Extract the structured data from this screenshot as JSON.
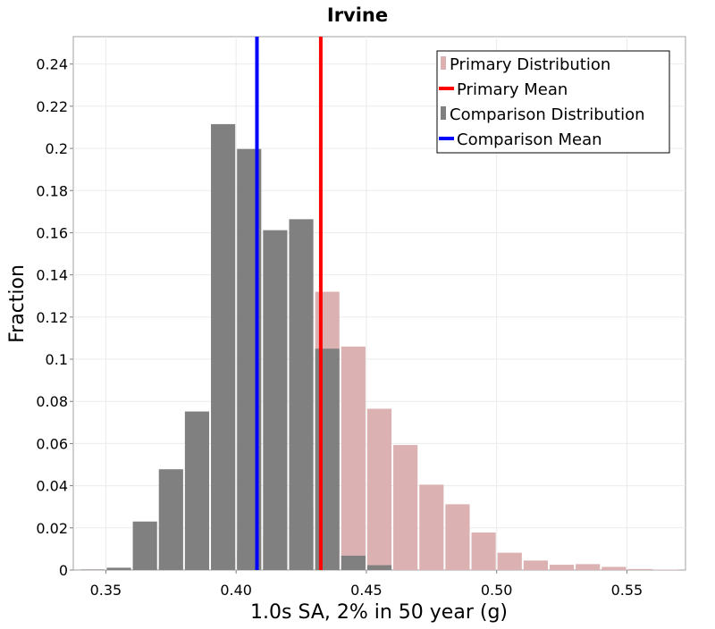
{
  "chart_data": {
    "type": "bar",
    "title": "Irvine",
    "xlabel": "1.0s SA, 2% in 50 year (g)",
    "ylabel": "Fraction",
    "xlim": [
      0.3375,
      0.5725
    ],
    "ylim": [
      0,
      0.253
    ],
    "xticks": [
      0.35,
      0.4,
      0.45,
      0.5,
      0.55
    ],
    "xtick_labels": [
      "0.35",
      "0.40",
      "0.45",
      "0.50",
      "0.55"
    ],
    "yticks": [
      0,
      0.02,
      0.04,
      0.06,
      0.08,
      0.1,
      0.12,
      0.14,
      0.16,
      0.18,
      0.2,
      0.22,
      0.24
    ],
    "ytick_labels": [
      "0",
      "0.02",
      "0.04",
      "0.06",
      "0.08",
      "0.1",
      "0.12",
      "0.14",
      "0.16",
      "0.18",
      "0.2",
      "0.22",
      "0.24"
    ],
    "bin_width": 0.01,
    "grid": true,
    "legend_position": "top-right",
    "series": [
      {
        "name": "Primary Distribution",
        "kind": "histogram",
        "color": "#dbb1b1",
        "bin_centers": [
          0.345,
          0.355,
          0.365,
          0.375,
          0.385,
          0.395,
          0.405,
          0.415,
          0.425,
          0.435,
          0.445,
          0.455,
          0.465,
          0.475,
          0.485,
          0.495,
          0.505,
          0.515,
          0.525,
          0.535,
          0.545,
          0.555,
          0.565
        ],
        "values": [
          0.0003,
          0.0006,
          0.001,
          0.002,
          0.004,
          0.006,
          0.01,
          0.016,
          0.03,
          0.132,
          0.106,
          0.0765,
          0.0593,
          0.0405,
          0.0312,
          0.0178,
          0.0082,
          0.0045,
          0.0025,
          0.0028,
          0.0015,
          0.0005,
          0.0002
        ]
      },
      {
        "name": "Primary Mean",
        "kind": "vline",
        "color": "#ff0000",
        "x": 0.4325
      },
      {
        "name": "Comparison Distribution",
        "kind": "histogram",
        "color": "#808080",
        "bin_centers": [
          0.345,
          0.355,
          0.365,
          0.375,
          0.385,
          0.395,
          0.405,
          0.415,
          0.425,
          0.435,
          0.445,
          0.455
        ],
        "values": [
          0.0002,
          0.0011,
          0.023,
          0.0478,
          0.0752,
          0.2115,
          0.1997,
          0.1612,
          0.1664,
          0.105,
          0.0068,
          0.0023
        ]
      },
      {
        "name": "Comparison Mean",
        "kind": "vline",
        "color": "#0000ff",
        "x": 0.408
      }
    ]
  }
}
